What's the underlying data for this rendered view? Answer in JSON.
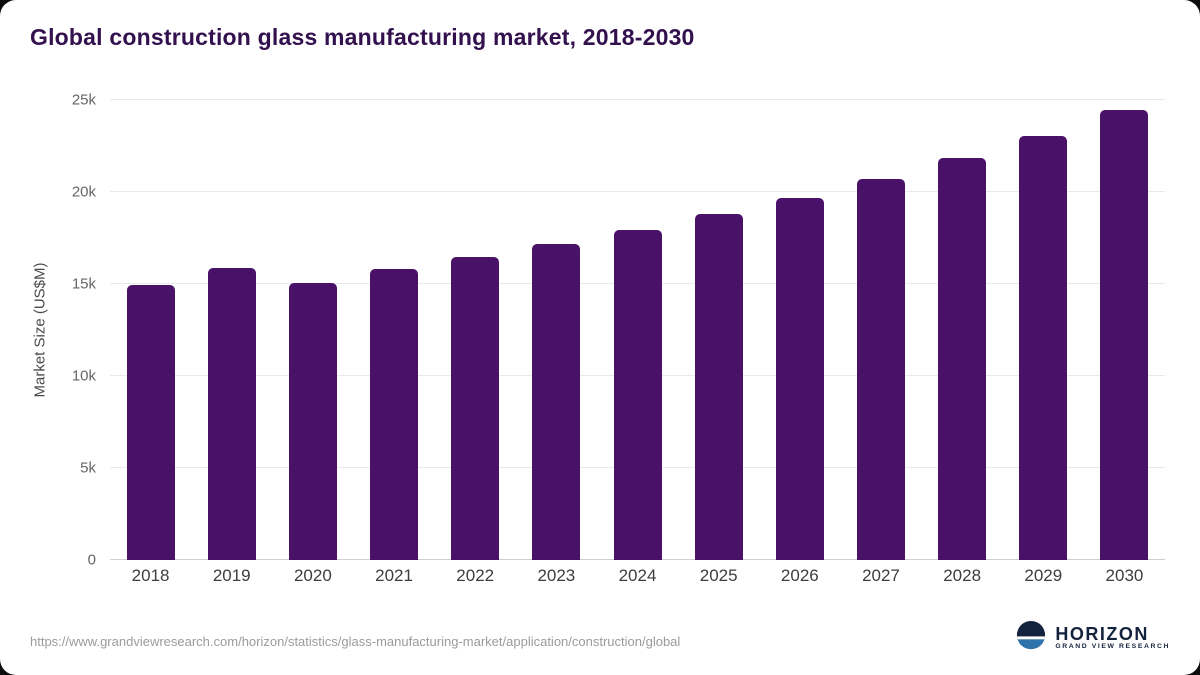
{
  "title": "Global construction glass manufacturing market, 2018-2030",
  "chart_data": {
    "type": "bar",
    "title": "Global construction glass manufacturing market, 2018-2030",
    "categories": [
      "2018",
      "2019",
      "2020",
      "2021",
      "2022",
      "2023",
      "2024",
      "2025",
      "2026",
      "2027",
      "2028",
      "2029",
      "2030"
    ],
    "values": [
      14950,
      15870,
      15060,
      15800,
      16480,
      17180,
      17950,
      18800,
      19700,
      20700,
      21850,
      23050,
      24450
    ],
    "xlabel": "",
    "ylabel": "Market Size (US$M)",
    "ylim": [
      0,
      25000
    ],
    "yticks": [
      {
        "value": 0,
        "label": "0"
      },
      {
        "value": 5000,
        "label": "5k"
      },
      {
        "value": 10000,
        "label": "10k"
      },
      {
        "value": 15000,
        "label": "15k"
      },
      {
        "value": 20000,
        "label": "20k"
      },
      {
        "value": 25000,
        "label": "25k"
      }
    ],
    "grid": true,
    "legend": false
  },
  "colors": {
    "bar": "#4a1168",
    "title": "#33104e",
    "grid": "#e9e9e9",
    "logo_navy": "#14233d",
    "logo_sea": "#2e75ad"
  },
  "footer": {
    "source_url": "https://www.grandviewresearch.com/horizon/statistics/glass-manufacturing-market/application/construction/global",
    "logo_title": "HORIZON",
    "logo_subtitle": "GRAND VIEW RESEARCH"
  }
}
